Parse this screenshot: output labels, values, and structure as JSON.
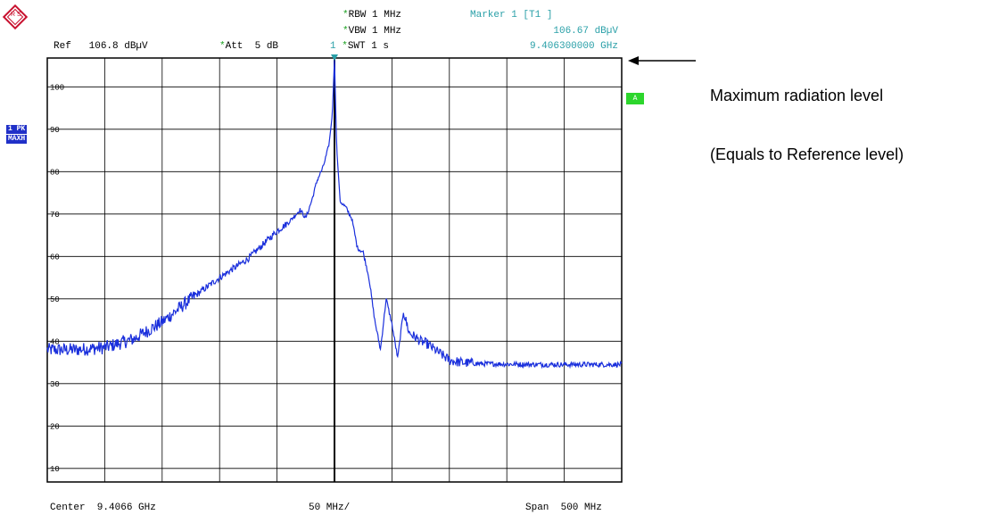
{
  "header": {
    "ref_label": "Ref",
    "ref_value": "106.8 dBµV",
    "att_star": "*",
    "att_label": "Att",
    "att_value": "5 dB",
    "rbw_star": "*",
    "rbw": "RBW 1 MHz",
    "vbw_star": "*",
    "vbw": "VBW 1 MHz",
    "swt_star": "*",
    "swt": "SWT 1 s",
    "trace_num": "1",
    "marker_title": "Marker 1 [T1 ]",
    "marker_level": "106.67 dBµV",
    "marker_freq": "9.406300000 GHz"
  },
  "side": {
    "trace_badge_1": "1 PK",
    "trace_badge_2": "MAXH",
    "a_badge": "A"
  },
  "logo": {
    "text": "R S"
  },
  "footer": {
    "center": "Center  9.4066 GHz",
    "per_div": "50 MHz/",
    "span": "Span  500 MHz"
  },
  "annotation": {
    "line1": "Maximum radiation level",
    "line2": "(Equals to Reference level)"
  },
  "marker_label": "1",
  "colors": {
    "trace": "#1a2fdc",
    "grid": "#000000",
    "teal": "#2aa0a8",
    "green": "#2cd62c",
    "badge": "#2030c8",
    "logo": "#c8102e"
  },
  "chart_data": {
    "type": "line",
    "title": "",
    "xlabel": "",
    "ylabel": "",
    "x_unit": "MHz offset from center",
    "xlim": [
      -250,
      250
    ],
    "ylim": [
      6.8,
      106.8
    ],
    "yticks": [
      10,
      20,
      30,
      40,
      50,
      60,
      70,
      80,
      90,
      100
    ],
    "grid": true,
    "series": [
      {
        "x": [
          -250,
          -225,
          -200,
          -175,
          -150,
          -125,
          -100,
          -75,
          -50,
          -40,
          -30,
          -25,
          -20,
          -15,
          -10,
          -5,
          -2,
          0,
          2,
          5,
          10,
          15,
          20,
          25,
          30,
          35,
          40,
          45,
          50,
          55,
          60,
          65,
          70,
          75,
          80,
          85,
          90,
          100,
          110,
          125,
          150,
          175,
          200,
          225,
          250
        ],
        "values": [
          38,
          38,
          38.5,
          40.5,
          44.5,
          50,
          55,
          59.5,
          66,
          68,
          71,
          69,
          73,
          78,
          81,
          86,
          93,
          106.7,
          85,
          73,
          71.5,
          69,
          62,
          61,
          55,
          45,
          38,
          50,
          44,
          36,
          47,
          42,
          41,
          40,
          39.5,
          38.5,
          37.5,
          35.5,
          35,
          34.7,
          34.6,
          34.5,
          34.5,
          34.5,
          34.5
        ]
      }
    ],
    "marker": {
      "x": 0,
      "y": 106.67
    }
  }
}
